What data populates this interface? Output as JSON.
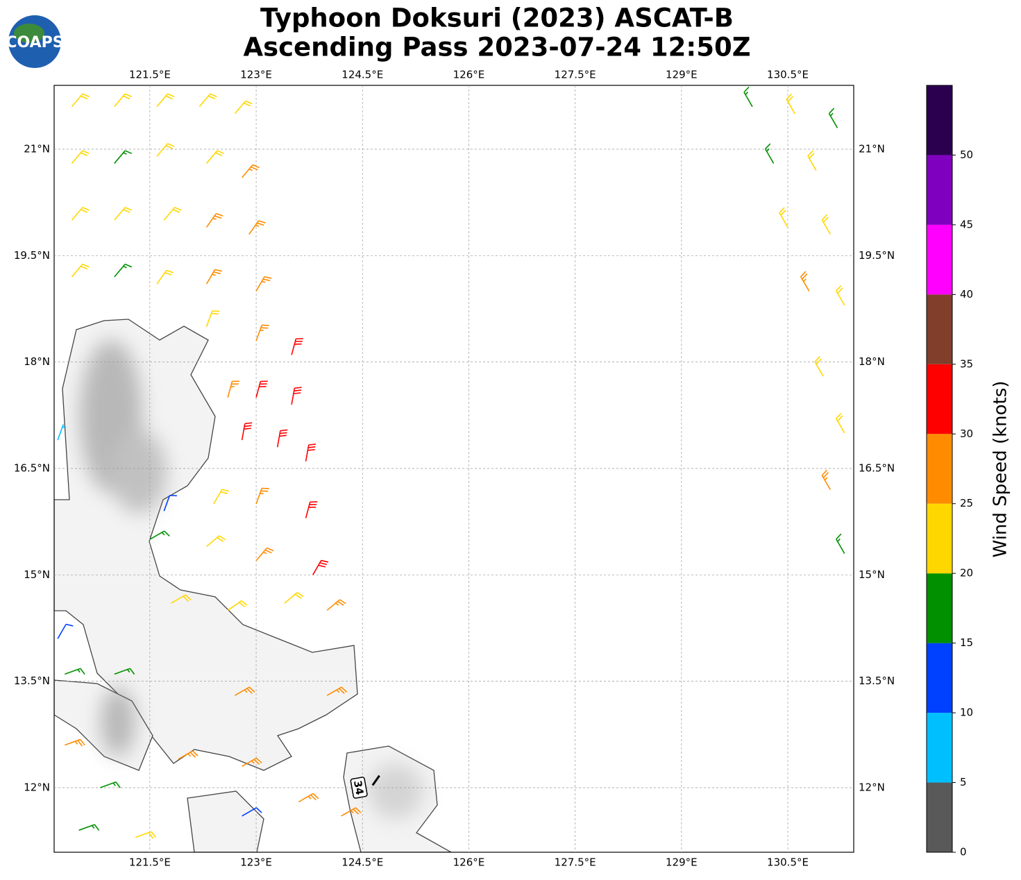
{
  "logo_text": "COAPS",
  "chart_data": {
    "type": "barbs",
    "title": "Typhoon Doksuri (2023) ASCAT-B",
    "subtitle": "Ascending Pass 2023-07-24 12:50Z",
    "xlim": [
      120.15,
      131.43
    ],
    "ylim": [
      11.09,
      21.9
    ],
    "xticks": [
      {
        "value": 121.5,
        "label": "121.5°E"
      },
      {
        "value": 123,
        "label": "123°E"
      },
      {
        "value": 124.5,
        "label": "124.5°E"
      },
      {
        "value": 126,
        "label": "126°E"
      },
      {
        "value": 127.5,
        "label": "127.5°E"
      },
      {
        "value": 129,
        "label": "129°E"
      },
      {
        "value": 130.5,
        "label": "130.5°E"
      }
    ],
    "yticks": [
      {
        "value": 21,
        "label": "21°N"
      },
      {
        "value": 19.5,
        "label": "19.5°N"
      },
      {
        "value": 18,
        "label": "18°N"
      },
      {
        "value": 16.5,
        "label": "16.5°N"
      },
      {
        "value": 15,
        "label": "15°N"
      },
      {
        "value": 13.5,
        "label": "13.5°N"
      },
      {
        "value": 12,
        "label": "12°N"
      }
    ],
    "grid": true,
    "storm": {
      "lon": 124.45,
      "lat": 12.0,
      "intensity": 34
    },
    "barbs": {
      "lon": [
        120.4,
        121.0,
        121.6,
        122.2,
        122.7,
        120.4,
        121.0,
        121.6,
        122.3,
        122.8,
        120.4,
        121.0,
        121.7,
        122.3,
        122.9,
        120.4,
        121.0,
        121.6,
        122.3,
        123.0,
        122.3,
        123.0,
        123.5,
        122.6,
        123.0,
        123.5,
        122.8,
        123.3,
        123.7,
        122.4,
        123.0,
        123.7,
        121.5,
        122.3,
        123.0,
        123.8,
        121.8,
        122.6,
        123.4,
        124.0,
        120.3,
        121.0,
        122.7,
        124.0,
        120.3,
        120.8,
        121.9,
        122.8,
        123.6,
        124.2,
        120.5,
        121.3,
        130.0,
        130.6,
        131.2,
        130.3,
        130.9,
        130.5,
        131.1,
        130.8,
        131.3,
        131.0,
        131.3,
        131.1,
        131.3,
        120.2,
        120.2,
        121.7,
        122.8
      ],
      "lat": [
        21.6,
        21.6,
        21.6,
        21.6,
        21.5,
        20.8,
        20.8,
        20.9,
        20.8,
        20.6,
        20.0,
        20.0,
        20.0,
        19.9,
        19.8,
        19.2,
        19.2,
        19.1,
        19.1,
        19.0,
        18.5,
        18.3,
        18.1,
        17.5,
        17.5,
        17.4,
        16.9,
        16.8,
        16.6,
        16.0,
        16.0,
        15.8,
        15.5,
        15.4,
        15.2,
        15.0,
        14.6,
        14.5,
        14.6,
        14.5,
        13.6,
        13.6,
        13.3,
        13.3,
        12.6,
        12.0,
        12.4,
        12.3,
        11.8,
        11.6,
        11.4,
        11.3,
        21.6,
        21.5,
        21.3,
        20.8,
        20.7,
        19.9,
        19.8,
        19.0,
        18.8,
        17.8,
        17.0,
        16.2,
        15.3,
        16.9,
        14.1,
        15.9,
        11.6
      ],
      "speed": [
        22,
        22,
        22,
        22,
        22,
        22,
        18,
        22,
        22,
        27,
        22,
        22,
        22,
        27,
        27,
        22,
        17,
        22,
        27,
        27,
        22,
        27,
        32,
        27,
        32,
        32,
        32,
        32,
        32,
        22,
        27,
        32,
        17,
        22,
        27,
        32,
        22,
        22,
        22,
        27,
        17,
        17,
        27,
        27,
        27,
        17,
        27,
        27,
        27,
        27,
        17,
        22,
        17,
        22,
        17,
        17,
        22,
        22,
        22,
        27,
        22,
        22,
        22,
        27,
        17,
        7,
        12,
        12,
        12
      ],
      "direction": [
        40,
        40,
        40,
        40,
        40,
        40,
        40,
        40,
        40,
        40,
        40,
        40,
        40,
        35,
        35,
        40,
        40,
        35,
        30,
        30,
        20,
        20,
        15,
        15,
        15,
        10,
        10,
        10,
        10,
        30,
        20,
        15,
        60,
        50,
        40,
        30,
        60,
        55,
        50,
        50,
        70,
        70,
        60,
        60,
        70,
        70,
        60,
        60,
        60,
        60,
        70,
        70,
        330,
        330,
        330,
        330,
        330,
        330,
        330,
        330,
        330,
        330,
        330,
        330,
        330,
        20,
        30,
        20,
        60
      ]
    },
    "colorbar": {
      "label": "Wind Speed (knots)",
      "lim": [
        0,
        55
      ],
      "bounds": [
        0,
        5,
        10,
        15,
        20,
        25,
        30,
        35,
        40,
        45,
        50,
        55
      ],
      "colors": [
        "#595959",
        "#00bfff",
        "#0040ff",
        "#009000",
        "#ffd700",
        "#ff8c00",
        "#ff0000",
        "#803f2a",
        "#ff00ff",
        "#8000c0",
        "#2a004f"
      ],
      "ticks": [
        0,
        5,
        10,
        15,
        20,
        25,
        30,
        35,
        40,
        45,
        50
      ]
    }
  }
}
